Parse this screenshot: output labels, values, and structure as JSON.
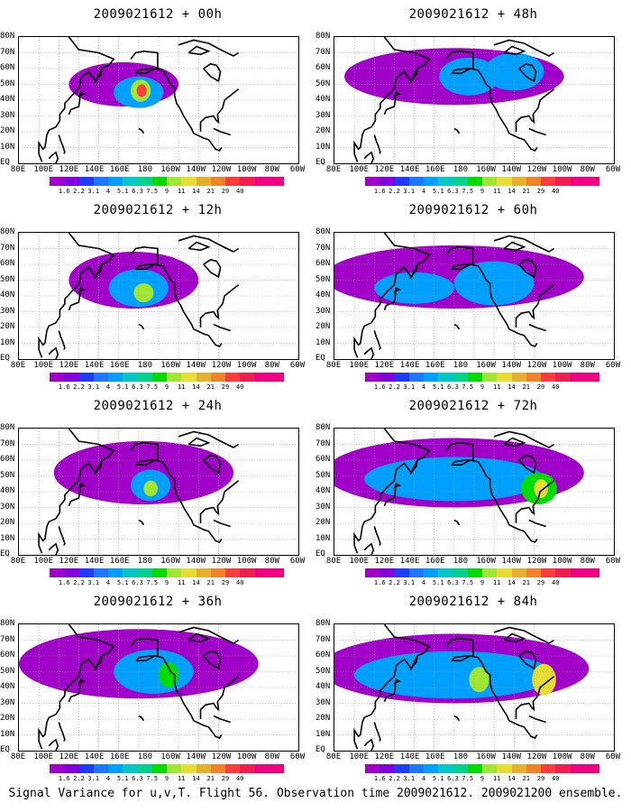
{
  "panels": [
    {
      "title": "2009021612 + 00h"
    },
    {
      "title": "2009021612 + 48h"
    },
    {
      "title": "2009021612 + 12h"
    },
    {
      "title": "2009021612 + 60h"
    },
    {
      "title": "2009021612 + 24h"
    },
    {
      "title": "2009021612 + 72h"
    },
    {
      "title": "2009021612 + 36h"
    },
    {
      "title": "2009021612 + 84h"
    }
  ],
  "axes": {
    "lat_labels": [
      "80N",
      "70N",
      "60N",
      "50N",
      "40N",
      "30N",
      "20N",
      "10N",
      "EQ"
    ],
    "lon_labels": [
      "80E",
      "100E",
      "120E",
      "140E",
      "160E",
      "180",
      "160W",
      "140W",
      "120W",
      "100W",
      "80W",
      "60W"
    ]
  },
  "colorbar": {
    "labels": [
      "1.6",
      "2.2",
      "3.1",
      "4",
      "5.1",
      "6.3",
      "7.5",
      "9",
      "11",
      "14",
      "21",
      "29",
      "40"
    ],
    "colors": [
      "#a000c8",
      "#8200dc",
      "#1e3cff",
      "#00a0ff",
      "#00c8c8",
      "#00d28c",
      "#00dc00",
      "#a0e632",
      "#e6dc32",
      "#e6af2d",
      "#f08228",
      "#fa3c3c",
      "#f00082"
    ]
  },
  "caption": "Signal Variance for u,v,T. Flight 56. Observation time 2009021612. 2009021200 ensemble."
}
